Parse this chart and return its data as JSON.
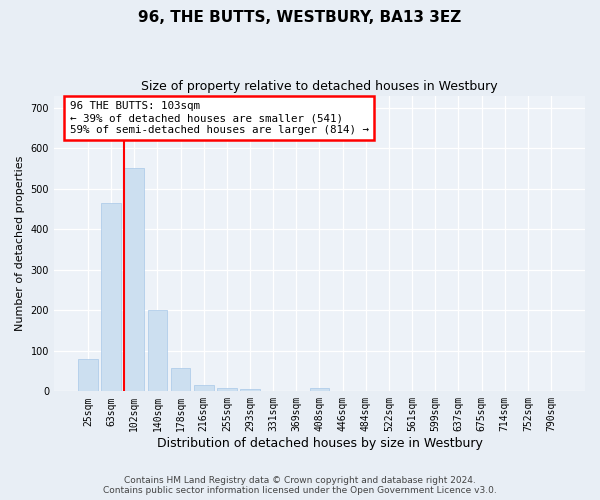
{
  "title": "96, THE BUTTS, WESTBURY, BA13 3EZ",
  "subtitle": "Size of property relative to detached houses in Westbury",
  "xlabel": "Distribution of detached houses by size in Westbury",
  "ylabel": "Number of detached properties",
  "categories": [
    "25sqm",
    "63sqm",
    "102sqm",
    "140sqm",
    "178sqm",
    "216sqm",
    "255sqm",
    "293sqm",
    "331sqm",
    "369sqm",
    "408sqm",
    "446sqm",
    "484sqm",
    "522sqm",
    "561sqm",
    "599sqm",
    "637sqm",
    "675sqm",
    "714sqm",
    "752sqm",
    "790sqm"
  ],
  "values": [
    80,
    465,
    550,
    200,
    58,
    15,
    8,
    6,
    0,
    0,
    8,
    0,
    0,
    0,
    0,
    0,
    0,
    0,
    0,
    0,
    0
  ],
  "bar_color": "#ccdff0",
  "bar_edgecolor": "#a8c8e8",
  "red_line_index": 2,
  "annotation_text": "96 THE BUTTS: 103sqm\n← 39% of detached houses are smaller (541)\n59% of semi-detached houses are larger (814) →",
  "annotation_box_color": "white",
  "annotation_box_edgecolor": "red",
  "ylim": [
    0,
    730
  ],
  "yticks": [
    0,
    100,
    200,
    300,
    400,
    500,
    600,
    700
  ],
  "footer_line1": "Contains HM Land Registry data © Crown copyright and database right 2024.",
  "footer_line2": "Contains public sector information licensed under the Open Government Licence v3.0.",
  "bg_color": "#e8eef5",
  "plot_bg_color": "#edf2f8",
  "title_fontsize": 11,
  "subtitle_fontsize": 9,
  "ylabel_fontsize": 8,
  "xlabel_fontsize": 9,
  "tick_fontsize": 7,
  "footer_fontsize": 6.5
}
